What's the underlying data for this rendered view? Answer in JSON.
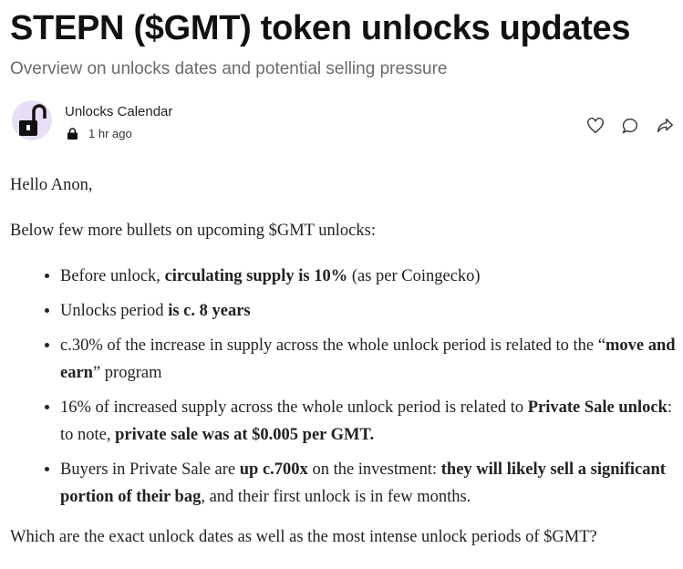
{
  "post": {
    "title": "STEPN ($GMT) token unlocks updates",
    "subtitle": "Overview on unlocks dates and potential selling pressure",
    "author": "Unlocks Calendar",
    "time": "1 hr ago"
  },
  "content": {
    "greeting": "Hello Anon,",
    "intro": "Below few more bullets on upcoming $GMT unlocks:",
    "b1": {
      "t1": "Before unlock, ",
      "b1": "circulating supply is 10%",
      "t2": " (as per Coingecko)"
    },
    "b2": {
      "t1": "Unlocks period ",
      "b1": "is c. 8 years"
    },
    "b3": {
      "t1": "c.30% of the increase in supply across the whole unlock period is related to the “",
      "b1": "move and earn",
      "t2": "” program"
    },
    "b4": {
      "t1": "16% of increased supply across the whole unlock period is related to ",
      "b1": "Private Sale unlock",
      "t2": ": to note, ",
      "b2": "private sale was at $0.005 per GMT."
    },
    "b5": {
      "t1": "Buyers in Private Sale are ",
      "b1": "up c.700x",
      "t2": " on the investment: ",
      "b2": "they will likely sell a significant portion of their bag",
      "t3": ", and their first unlock is in few months."
    },
    "question": "Which are the exact unlock dates as well as the most intense unlock periods of $GMT?"
  },
  "colors": {
    "avatar_bg": "#e8def8"
  }
}
